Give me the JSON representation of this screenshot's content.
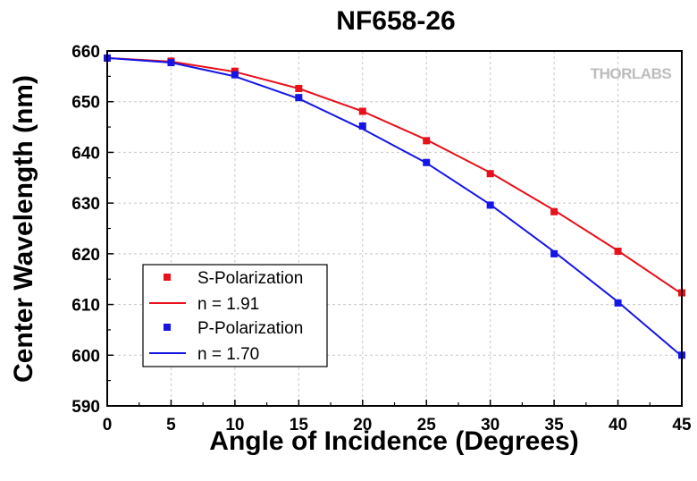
{
  "chart_data": {
    "type": "line",
    "title": "NF658-26",
    "xlabel": "Angle of Incidence (Degrees)",
    "ylabel": "Center Wavelength (nm)",
    "xlim": [
      0,
      45
    ],
    "ylim": [
      590,
      660
    ],
    "x_ticks": [
      "0",
      "5",
      "10",
      "15",
      "20",
      "25",
      "30",
      "35",
      "40",
      "45"
    ],
    "y_ticks": [
      "590",
      "600",
      "610",
      "620",
      "630",
      "640",
      "650",
      "660"
    ],
    "grid": true,
    "legend_position": "bottom-left",
    "series": [
      {
        "name": "S-Polarization",
        "kind": "points",
        "color": "#e8101a",
        "x": [
          0,
          5,
          10,
          15,
          20,
          25,
          30,
          35,
          40,
          45
        ],
        "y": [
          658.6,
          658.0,
          656.0,
          652.6,
          648.1,
          642.3,
          635.8,
          628.3,
          620.5,
          612.3
        ]
      },
      {
        "name": "n = 1.91",
        "kind": "line",
        "color": "#e8101a",
        "x": [
          0,
          5,
          10,
          15,
          20,
          25,
          30,
          35,
          40,
          45
        ],
        "y": [
          658.6,
          657.9,
          655.9,
          652.6,
          648.1,
          642.5,
          636.0,
          628.6,
          620.6,
          612.1
        ]
      },
      {
        "name": "P-Polarization",
        "kind": "points",
        "color": "#1515e6",
        "x": [
          0,
          5,
          10,
          15,
          20,
          25,
          30,
          35,
          40,
          45
        ],
        "y": [
          658.6,
          657.7,
          655.3,
          650.8,
          645.2,
          638.0,
          629.6,
          620.0,
          610.3,
          600.0
        ]
      },
      {
        "name": "n = 1.70",
        "kind": "line",
        "color": "#1515e6",
        "x": [
          0,
          5,
          10,
          15,
          20,
          25,
          30,
          35,
          40,
          45
        ],
        "y": [
          658.6,
          657.7,
          655.0,
          650.6,
          644.6,
          637.9,
          629.7,
          620.4,
          610.5,
          599.8
        ]
      }
    ],
    "logo": "THORLABS"
  }
}
